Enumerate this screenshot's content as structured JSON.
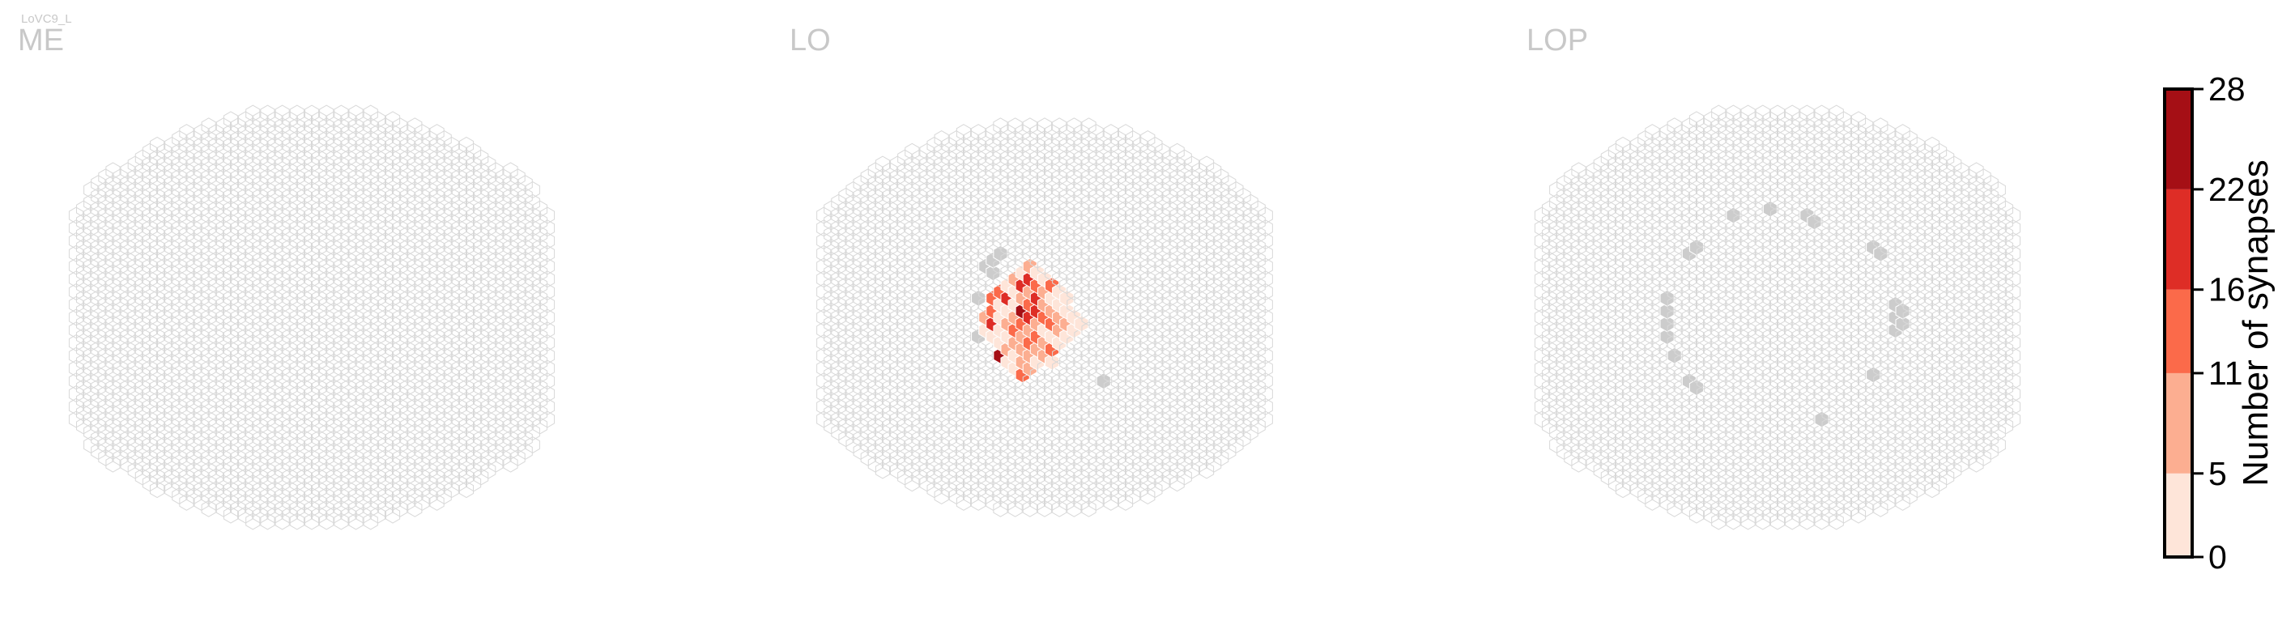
{
  "neuron_label": "LoVC9_L",
  "chart_data": {
    "type": "heatmap",
    "subtype": "hexagonal column map",
    "panels": [
      {
        "name": "ME",
        "radius_in_columns": 16,
        "highlighted": [],
        "synapse_columns": []
      },
      {
        "name": "LO",
        "radius_in_columns": 15,
        "highlighted": [
          [
            -9,
            3
          ],
          [
            -9,
            -3
          ],
          [
            -8,
            8
          ],
          [
            -8,
            -5
          ],
          [
            -7,
            9
          ],
          [
            -7,
            7
          ],
          [
            -6,
            10
          ],
          [
            3,
            -10
          ],
          [
            5,
            8
          ],
          [
            6,
            5
          ],
          [
            6,
            -11
          ],
          [
            7,
            -4
          ],
          [
            8,
            -10
          ]
        ],
        "synapse_columns": [
          [
            -3,
            8,
            12
          ],
          [
            -2,
            8,
            6
          ],
          [
            -4,
            7,
            2
          ],
          [
            -3,
            7,
            5
          ],
          [
            -2,
            7,
            8
          ],
          [
            -1,
            7,
            3
          ],
          [
            -5,
            6,
            14
          ],
          [
            -4,
            6,
            9
          ],
          [
            -3,
            6,
            18
          ],
          [
            -2,
            6,
            20
          ],
          [
            -1,
            6,
            7
          ],
          [
            0,
            6,
            2
          ],
          [
            1,
            6,
            4
          ],
          [
            -6,
            5,
            10
          ],
          [
            -5,
            5,
            5
          ],
          [
            -4,
            5,
            13
          ],
          [
            -3,
            5,
            17
          ],
          [
            -2,
            5,
            27
          ],
          [
            -1,
            5,
            14
          ],
          [
            0,
            5,
            10
          ],
          [
            1,
            5,
            12
          ],
          [
            2,
            5,
            3
          ],
          [
            -6,
            4,
            12
          ],
          [
            -5,
            4,
            20
          ],
          [
            -4,
            4,
            3
          ],
          [
            -3,
            4,
            22
          ],
          [
            -2,
            4,
            8
          ],
          [
            -1,
            4,
            15
          ],
          [
            0,
            4,
            10
          ],
          [
            1,
            4,
            13
          ],
          [
            2,
            4,
            2
          ],
          [
            3,
            4,
            10
          ],
          [
            -7,
            3,
            14
          ],
          [
            -6,
            3,
            7
          ],
          [
            -5,
            3,
            17
          ],
          [
            -4,
            3,
            19
          ],
          [
            -3,
            3,
            11
          ],
          [
            -2,
            3,
            6
          ],
          [
            -1,
            3,
            20
          ],
          [
            0,
            3,
            9
          ],
          [
            1,
            3,
            4
          ],
          [
            2,
            3,
            11
          ],
          [
            3,
            3,
            1
          ],
          [
            -7,
            2,
            8
          ],
          [
            -6,
            2,
            3
          ],
          [
            -5,
            2,
            22
          ],
          [
            -4,
            2,
            5
          ],
          [
            -3,
            2,
            9
          ],
          [
            -2,
            2,
            15
          ],
          [
            -1,
            2,
            12
          ],
          [
            0,
            2,
            7
          ],
          [
            1,
            2,
            21
          ],
          [
            2,
            2,
            2
          ],
          [
            3,
            2,
            5
          ],
          [
            -7,
            1,
            15
          ],
          [
            -6,
            1,
            6
          ],
          [
            -5,
            1,
            2
          ],
          [
            -4,
            1,
            12
          ],
          [
            -3,
            1,
            25
          ],
          [
            -2,
            1,
            13
          ],
          [
            -1,
            1,
            17
          ],
          [
            0,
            1,
            4
          ],
          [
            1,
            1,
            9
          ],
          [
            2,
            1,
            12
          ],
          [
            3,
            1,
            3
          ],
          [
            4,
            1,
            1
          ],
          [
            -8,
            0,
            6
          ],
          [
            -7,
            0,
            10
          ],
          [
            -6,
            0,
            3
          ],
          [
            -5,
            0,
            24
          ],
          [
            -4,
            0,
            8
          ],
          [
            -3,
            0,
            14
          ],
          [
            -2,
            0,
            19
          ],
          [
            -1,
            0,
            6
          ],
          [
            0,
            0,
            13
          ],
          [
            1,
            0,
            2
          ],
          [
            2,
            0,
            8
          ],
          [
            3,
            0,
            4
          ],
          [
            4,
            0,
            2
          ],
          [
            -8,
            -1,
            4
          ],
          [
            -7,
            -1,
            21
          ],
          [
            -6,
            -1,
            7
          ],
          [
            -5,
            -1,
            9
          ],
          [
            -4,
            -1,
            11
          ],
          [
            -3,
            -1,
            13
          ],
          [
            -2,
            -1,
            5
          ],
          [
            -1,
            -1,
            9
          ],
          [
            0,
            -1,
            12
          ],
          [
            1,
            -1,
            15
          ],
          [
            2,
            -1,
            4
          ],
          [
            3,
            -1,
            7
          ],
          [
            4,
            -1,
            3
          ],
          [
            5,
            -1,
            2
          ],
          [
            -8,
            -2,
            5
          ],
          [
            -7,
            -2,
            10
          ],
          [
            -6,
            -2,
            3
          ],
          [
            -5,
            -2,
            6
          ],
          [
            -4,
            -2,
            15
          ],
          [
            -3,
            -2,
            2
          ],
          [
            -2,
            -2,
            9
          ],
          [
            -1,
            -2,
            6
          ],
          [
            0,
            -2,
            3
          ],
          [
            1,
            -2,
            20
          ],
          [
            2,
            -2,
            7
          ],
          [
            3,
            -2,
            10
          ],
          [
            4,
            -2,
            3
          ],
          [
            -7,
            -3,
            2
          ],
          [
            -6,
            -3,
            8
          ],
          [
            -5,
            -3,
            4
          ],
          [
            -4,
            -3,
            13
          ],
          [
            -3,
            -3,
            10
          ],
          [
            -2,
            -3,
            7
          ],
          [
            -1,
            -3,
            15
          ],
          [
            0,
            -3,
            11
          ],
          [
            1,
            -3,
            5
          ],
          [
            2,
            -3,
            2
          ],
          [
            3,
            -3,
            4
          ],
          [
            -6,
            -4,
            5
          ],
          [
            -5,
            -4,
            3
          ],
          [
            -4,
            -4,
            9
          ],
          [
            -3,
            -4,
            17
          ],
          [
            -2,
            -4,
            12
          ],
          [
            -1,
            -4,
            10
          ],
          [
            0,
            -4,
            6
          ],
          [
            1,
            -4,
            8
          ],
          [
            2,
            -4,
            3
          ],
          [
            -6,
            -5,
            11
          ],
          [
            -5,
            -5,
            8
          ],
          [
            -4,
            -5,
            4
          ],
          [
            -3,
            -5,
            6
          ],
          [
            -2,
            -5,
            14
          ],
          [
            -1,
            -5,
            9
          ],
          [
            0,
            -5,
            5
          ],
          [
            1,
            -5,
            12
          ],
          [
            2,
            -5,
            10
          ],
          [
            -7,
            -6,
            3
          ],
          [
            -6,
            -6,
            24
          ],
          [
            -5,
            -6,
            13
          ],
          [
            -4,
            -6,
            5
          ],
          [
            -3,
            -6,
            10
          ],
          [
            -2,
            -6,
            8
          ],
          [
            -1,
            -6,
            4
          ],
          [
            0,
            -6,
            7
          ],
          [
            1,
            -6,
            3
          ],
          [
            -6,
            -7,
            6
          ],
          [
            -5,
            -7,
            2
          ],
          [
            -4,
            -7,
            3
          ],
          [
            -3,
            -7,
            7
          ],
          [
            -2,
            -7,
            12
          ],
          [
            -1,
            -7,
            5
          ],
          [
            0,
            -7,
            13
          ],
          [
            1,
            -7,
            3
          ],
          [
            -4,
            -8,
            2
          ],
          [
            -3,
            -8,
            4
          ],
          [
            -2,
            -8,
            9
          ],
          [
            -1,
            -8,
            3
          ],
          [
            -3,
            -9,
            15
          ]
        ]
      },
      {
        "name": "LOP",
        "radius_in_columns": 16,
        "highlighted": [
          [
            -15,
            3
          ],
          [
            -15,
            1
          ],
          [
            -15,
            -1
          ],
          [
            -15,
            -3
          ],
          [
            -14,
            5
          ],
          [
            -14,
            -6
          ],
          [
            -13,
            8
          ],
          [
            -13,
            -8
          ],
          [
            -12,
            10
          ],
          [
            -12,
            -10
          ],
          [
            -11,
            11
          ],
          [
            -11,
            -11
          ],
          [
            -10,
            13
          ],
          [
            -10,
            -13
          ],
          [
            -9,
            14
          ],
          [
            -9,
            -14
          ],
          [
            -8,
            15
          ],
          [
            -8,
            -15
          ],
          [
            -6,
            16
          ],
          [
            -5,
            -16
          ],
          [
            -3,
            -16
          ],
          [
            -1,
            17
          ],
          [
            0,
            -17
          ],
          [
            2,
            -17
          ],
          [
            4,
            16
          ],
          [
            5,
            15
          ],
          [
            6,
            -16
          ],
          [
            8,
            -15
          ],
          [
            10,
            -13
          ],
          [
            11,
            -12
          ],
          [
            12,
            -11
          ],
          [
            13,
            -9
          ],
          [
            14,
            -7
          ],
          [
            15,
            -6
          ],
          [
            15,
            4
          ],
          [
            16,
            2
          ],
          [
            16,
            0
          ],
          [
            16,
            -2
          ],
          [
            17,
            1
          ],
          [
            17,
            -1
          ],
          [
            14,
            10
          ],
          [
            15,
            8
          ],
          [
            13,
            11
          ]
        ]
      }
    ],
    "colorbar": {
      "label": "Number of synapses",
      "ticks": [
        0,
        5,
        11,
        16,
        22,
        28
      ],
      "bins": [
        {
          "min": 0,
          "max": 5,
          "color": "#fee5d9"
        },
        {
          "min": 5,
          "max": 11,
          "color": "#fcae91"
        },
        {
          "min": 11,
          "max": 16,
          "color": "#fb6a4a"
        },
        {
          "min": 16,
          "max": 22,
          "color": "#de2d26"
        },
        {
          "min": 22,
          "max": 28,
          "color": "#a50f15"
        }
      ]
    },
    "colors": {
      "empty_column_stroke": "#d8d8d8",
      "highlighted_column_fill": "#cccccc",
      "synapse_column_stroke": "#ffffff"
    }
  }
}
